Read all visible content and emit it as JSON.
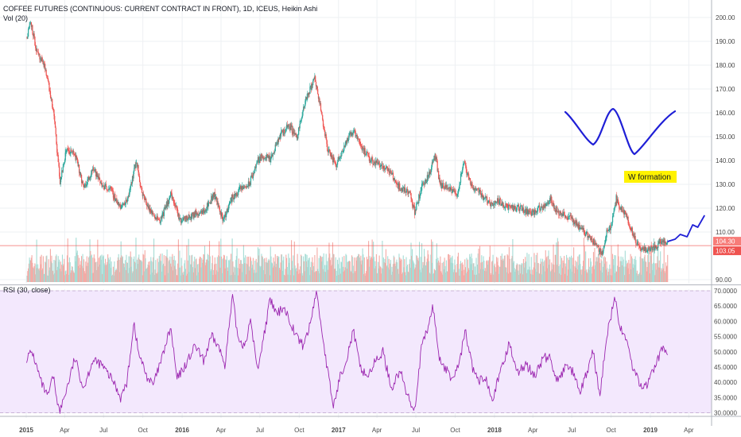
{
  "header": {
    "title": "COFFEE FUTURES (CONTINUOUS: CURRENT CONTRACT IN FRONT), 1D, ICEUS, Heikin Ashi",
    "vol_label": "Vol (20)",
    "rsi_label": "RSI (30, close)"
  },
  "annotation": {
    "text": "W formation"
  },
  "chart_data": [
    {
      "type": "line",
      "name": "price",
      "price_style": "heikin-ashi candles",
      "x_axis_labels": [
        "2015",
        "Apr",
        "Jul",
        "Oct",
        "2016",
        "Apr",
        "Jul",
        "Oct",
        "2017",
        "Apr",
        "Jul",
        "Oct",
        "2018",
        "Apr",
        "Jul",
        "Oct",
        "2019",
        "Apr"
      ],
      "y_ticks": [
        "200.00",
        "190.00",
        "180.00",
        "170.00",
        "160.00",
        "150.00",
        "140.00",
        "130.00",
        "120.00",
        "110.00",
        "90.00"
      ],
      "ylim": [
        88,
        203
      ],
      "price_badges": [
        "104.30",
        "103.05"
      ],
      "current_price": 104.3,
      "anchors": [
        {
          "x": "2015-01-02",
          "y": 192
        },
        {
          "x": "2015-01-10",
          "y": 199
        },
        {
          "x": "2015-01-25",
          "y": 185
        },
        {
          "x": "2015-02-15",
          "y": 178
        },
        {
          "x": "2015-03-05",
          "y": 160
        },
        {
          "x": "2015-03-20",
          "y": 131
        },
        {
          "x": "2015-04-05",
          "y": 145
        },
        {
          "x": "2015-04-25",
          "y": 142
        },
        {
          "x": "2015-05-15",
          "y": 128
        },
        {
          "x": "2015-06-05",
          "y": 137
        },
        {
          "x": "2015-06-25",
          "y": 130
        },
        {
          "x": "2015-07-15",
          "y": 128
        },
        {
          "x": "2015-08-10",
          "y": 120
        },
        {
          "x": "2015-08-25",
          "y": 124
        },
        {
          "x": "2015-09-15",
          "y": 140
        },
        {
          "x": "2015-09-28",
          "y": 126
        },
        {
          "x": "2015-10-20",
          "y": 118
        },
        {
          "x": "2015-11-10",
          "y": 115
        },
        {
          "x": "2015-12-05",
          "y": 126
        },
        {
          "x": "2015-12-25",
          "y": 115
        },
        {
          "x": "2016-01-15",
          "y": 116
        },
        {
          "x": "2016-02-05",
          "y": 118
        },
        {
          "x": "2016-02-25",
          "y": 120
        },
        {
          "x": "2016-03-15",
          "y": 126
        },
        {
          "x": "2016-04-05",
          "y": 115
        },
        {
          "x": "2016-04-25",
          "y": 124
        },
        {
          "x": "2016-05-15",
          "y": 128
        },
        {
          "x": "2016-06-05",
          "y": 130
        },
        {
          "x": "2016-06-25",
          "y": 140
        },
        {
          "x": "2016-07-10",
          "y": 142
        },
        {
          "x": "2016-07-25",
          "y": 140
        },
        {
          "x": "2016-08-15",
          "y": 150
        },
        {
          "x": "2016-09-05",
          "y": 155
        },
        {
          "x": "2016-09-25",
          "y": 150
        },
        {
          "x": "2016-10-15",
          "y": 165
        },
        {
          "x": "2016-11-05",
          "y": 175
        },
        {
          "x": "2016-11-15",
          "y": 166
        },
        {
          "x": "2016-12-05",
          "y": 145
        },
        {
          "x": "2016-12-25",
          "y": 138
        },
        {
          "x": "2017-01-15",
          "y": 147
        },
        {
          "x": "2017-02-05",
          "y": 153
        },
        {
          "x": "2017-02-25",
          "y": 145
        },
        {
          "x": "2017-03-15",
          "y": 140
        },
        {
          "x": "2017-04-05",
          "y": 139
        },
        {
          "x": "2017-05-01",
          "y": 135
        },
        {
          "x": "2017-05-25",
          "y": 128
        },
        {
          "x": "2017-06-15",
          "y": 127
        },
        {
          "x": "2017-06-28",
          "y": 118
        },
        {
          "x": "2017-07-15",
          "y": 130
        },
        {
          "x": "2017-07-28",
          "y": 133
        },
        {
          "x": "2017-08-15",
          "y": 142
        },
        {
          "x": "2017-08-25",
          "y": 130
        },
        {
          "x": "2017-09-15",
          "y": 128
        },
        {
          "x": "2017-10-05",
          "y": 126
        },
        {
          "x": "2017-10-20",
          "y": 139
        },
        {
          "x": "2017-11-05",
          "y": 130
        },
        {
          "x": "2017-11-25",
          "y": 127
        },
        {
          "x": "2017-12-20",
          "y": 122
        },
        {
          "x": "2018-01-10",
          "y": 123
        },
        {
          "x": "2018-02-05",
          "y": 120
        },
        {
          "x": "2018-03-01",
          "y": 120
        },
        {
          "x": "2018-03-25",
          "y": 118
        },
        {
          "x": "2018-04-20",
          "y": 120
        },
        {
          "x": "2018-05-10",
          "y": 124
        },
        {
          "x": "2018-05-30",
          "y": 118
        },
        {
          "x": "2018-06-25",
          "y": 116
        },
        {
          "x": "2018-07-20",
          "y": 112
        },
        {
          "x": "2018-08-10",
          "y": 108
        },
        {
          "x": "2018-08-28",
          "y": 104
        },
        {
          "x": "2018-09-10",
          "y": 101
        },
        {
          "x": "2018-09-20",
          "y": 110
        },
        {
          "x": "2018-10-01",
          "y": 113
        },
        {
          "x": "2018-10-12",
          "y": 124
        },
        {
          "x": "2018-10-22",
          "y": 120
        },
        {
          "x": "2018-11-05",
          "y": 117
        },
        {
          "x": "2018-11-20",
          "y": 109
        },
        {
          "x": "2018-12-05",
          "y": 103
        },
        {
          "x": "2018-12-20",
          "y": 103
        },
        {
          "x": "2019-01-05",
          "y": 103
        },
        {
          "x": "2019-01-25",
          "y": 106
        },
        {
          "x": "2019-02-10",
          "y": 106
        }
      ],
      "projection": [
        {
          "x": "2019-02-10",
          "y": 106
        },
        {
          "x": "2019-02-28",
          "y": 107
        },
        {
          "x": "2019-03-12",
          "y": 109
        },
        {
          "x": "2019-03-28",
          "y": 108
        },
        {
          "x": "2019-04-10",
          "y": 113
        },
        {
          "x": "2019-04-22",
          "y": 112
        },
        {
          "x": "2019-05-08",
          "y": 117
        }
      ],
      "volume_note": "volume histogram behind the price series, teal/red bars"
    },
    {
      "type": "line",
      "name": "RSI (30, close)",
      "y_ticks": [
        "70.0000",
        "65.0000",
        "60.0000",
        "55.0000",
        "50.0000",
        "45.0000",
        "40.0000",
        "35.0000",
        "30.0000"
      ],
      "ylim": [
        28.5,
        70.5
      ],
      "bands": [
        30,
        70
      ],
      "anchors": [
        {
          "x": "2015-01-02",
          "y": 48
        },
        {
          "x": "2015-01-15",
          "y": 50
        },
        {
          "x": "2015-02-05",
          "y": 40
        },
        {
          "x": "2015-02-20",
          "y": 35
        },
        {
          "x": "2015-03-05",
          "y": 42
        },
        {
          "x": "2015-03-20",
          "y": 30
        },
        {
          "x": "2015-04-10",
          "y": 40
        },
        {
          "x": "2015-04-25",
          "y": 48
        },
        {
          "x": "2015-05-15",
          "y": 38
        },
        {
          "x": "2015-06-05",
          "y": 47
        },
        {
          "x": "2015-06-25",
          "y": 46
        },
        {
          "x": "2015-07-10",
          "y": 43
        },
        {
          "x": "2015-07-25",
          "y": 40
        },
        {
          "x": "2015-08-10",
          "y": 35
        },
        {
          "x": "2015-08-25",
          "y": 40
        },
        {
          "x": "2015-09-10",
          "y": 60
        },
        {
          "x": "2015-09-20",
          "y": 50
        },
        {
          "x": "2015-10-10",
          "y": 42
        },
        {
          "x": "2015-10-25",
          "y": 39
        },
        {
          "x": "2015-11-15",
          "y": 48
        },
        {
          "x": "2015-12-05",
          "y": 58
        },
        {
          "x": "2015-12-20",
          "y": 41
        },
        {
          "x": "2016-01-10",
          "y": 46
        },
        {
          "x": "2016-02-01",
          "y": 52
        },
        {
          "x": "2016-02-20",
          "y": 47
        },
        {
          "x": "2016-03-10",
          "y": 55
        },
        {
          "x": "2016-03-25",
          "y": 52
        },
        {
          "x": "2016-04-10",
          "y": 46
        },
        {
          "x": "2016-04-28",
          "y": 68
        },
        {
          "x": "2016-05-10",
          "y": 55
        },
        {
          "x": "2016-05-25",
          "y": 52
        },
        {
          "x": "2016-06-10",
          "y": 60
        },
        {
          "x": "2016-06-25",
          "y": 44
        },
        {
          "x": "2016-07-10",
          "y": 55
        },
        {
          "x": "2016-07-25",
          "y": 67
        },
        {
          "x": "2016-08-10",
          "y": 62
        },
        {
          "x": "2016-08-25",
          "y": 65
        },
        {
          "x": "2016-09-10",
          "y": 60
        },
        {
          "x": "2016-09-25",
          "y": 55
        },
        {
          "x": "2016-10-10",
          "y": 52
        },
        {
          "x": "2016-10-25",
          "y": 58
        },
        {
          "x": "2016-11-10",
          "y": 70
        },
        {
          "x": "2016-11-20",
          "y": 60
        },
        {
          "x": "2016-12-05",
          "y": 45
        },
        {
          "x": "2016-12-20",
          "y": 32
        },
        {
          "x": "2017-01-05",
          "y": 42
        },
        {
          "x": "2017-01-20",
          "y": 48
        },
        {
          "x": "2017-02-05",
          "y": 57
        },
        {
          "x": "2017-02-20",
          "y": 45
        },
        {
          "x": "2017-03-10",
          "y": 42
        },
        {
          "x": "2017-03-25",
          "y": 46
        },
        {
          "x": "2017-04-15",
          "y": 50
        },
        {
          "x": "2017-05-05",
          "y": 38
        },
        {
          "x": "2017-05-25",
          "y": 44
        },
        {
          "x": "2017-06-10",
          "y": 36
        },
        {
          "x": "2017-06-28",
          "y": 31
        },
        {
          "x": "2017-07-15",
          "y": 52
        },
        {
          "x": "2017-07-28",
          "y": 57
        },
        {
          "x": "2017-08-10",
          "y": 65
        },
        {
          "x": "2017-08-25",
          "y": 48
        },
        {
          "x": "2017-09-10",
          "y": 44
        },
        {
          "x": "2017-09-25",
          "y": 41
        },
        {
          "x": "2017-10-10",
          "y": 46
        },
        {
          "x": "2017-10-25",
          "y": 57
        },
        {
          "x": "2017-11-10",
          "y": 45
        },
        {
          "x": "2017-11-25",
          "y": 40
        },
        {
          "x": "2017-12-10",
          "y": 42
        },
        {
          "x": "2017-12-28",
          "y": 35
        },
        {
          "x": "2018-01-15",
          "y": 43
        },
        {
          "x": "2018-02-05",
          "y": 53
        },
        {
          "x": "2018-02-25",
          "y": 43
        },
        {
          "x": "2018-03-15",
          "y": 46
        },
        {
          "x": "2018-04-05",
          "y": 42
        },
        {
          "x": "2018-04-25",
          "y": 48
        },
        {
          "x": "2018-05-10",
          "y": 48
        },
        {
          "x": "2018-05-30",
          "y": 40
        },
        {
          "x": "2018-06-20",
          "y": 46
        },
        {
          "x": "2018-07-05",
          "y": 43
        },
        {
          "x": "2018-07-20",
          "y": 36
        },
        {
          "x": "2018-08-05",
          "y": 43
        },
        {
          "x": "2018-08-20",
          "y": 50
        },
        {
          "x": "2018-09-05",
          "y": 35
        },
        {
          "x": "2018-09-20",
          "y": 55
        },
        {
          "x": "2018-10-01",
          "y": 62
        },
        {
          "x": "2018-10-10",
          "y": 68
        },
        {
          "x": "2018-10-20",
          "y": 58
        },
        {
          "x": "2018-11-05",
          "y": 55
        },
        {
          "x": "2018-11-20",
          "y": 45
        },
        {
          "x": "2018-12-05",
          "y": 40
        },
        {
          "x": "2018-12-20",
          "y": 38
        },
        {
          "x": "2019-01-05",
          "y": 43
        },
        {
          "x": "2019-01-20",
          "y": 48
        },
        {
          "x": "2019-02-01",
          "y": 52
        },
        {
          "x": "2019-02-10",
          "y": 49
        }
      ]
    }
  ]
}
